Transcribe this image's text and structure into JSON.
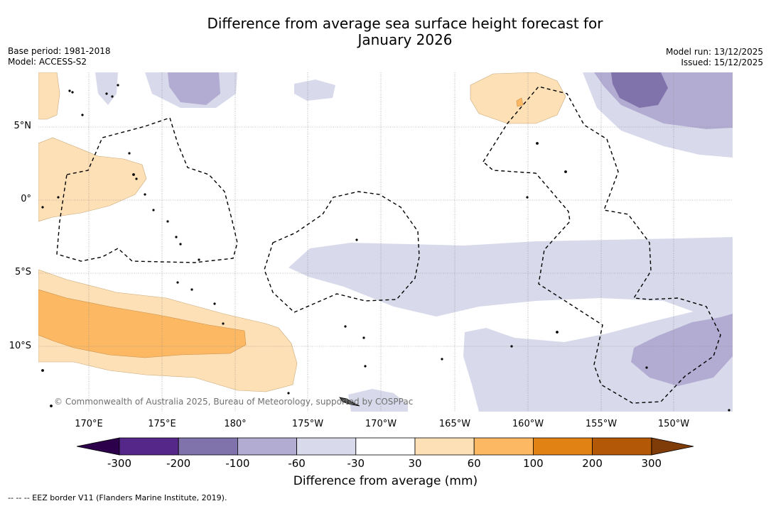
{
  "title": {
    "line1": "Difference from average sea surface height forecast for",
    "line2": "January 2026"
  },
  "meta": {
    "base_period": "Base period: 1981-2018",
    "model": "Model: ACCESS-S2",
    "model_run": "Model run: 13/12/2025",
    "issued": "Issued: 15/12/2025"
  },
  "map": {
    "lat_labels": [
      "5°N",
      "0°",
      "5°S",
      "10°S"
    ],
    "lon_labels": [
      "170°E",
      "175°E",
      "180°",
      "175°W",
      "170°W",
      "165°W",
      "160°W",
      "155°W",
      "150°W"
    ],
    "copyright": "© Commonwealth of Australia 2025, Bureau of Meteorology, supported by COSPPac"
  },
  "colorbar": {
    "ticks": [
      "-300",
      "-200",
      "-100",
      "-60",
      "-30",
      "30",
      "60",
      "100",
      "200",
      "300"
    ],
    "colors": [
      "#542788",
      "#8073ac",
      "#b2abd2",
      "#d8daeb",
      "#ffffff",
      "#fee0b6",
      "#fdb863",
      "#e08214",
      "#b35806"
    ],
    "under_color": "#2d004b",
    "over_color": "#7f3b08",
    "label": "Difference from average (mm)"
  },
  "legend": {
    "eez": "-- -- -- EEZ border V11 (Flanders Marine Institute, 2019)."
  }
}
